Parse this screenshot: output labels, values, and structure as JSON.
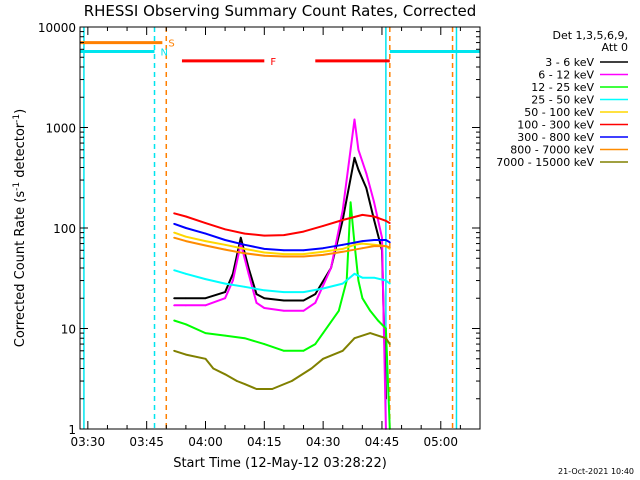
{
  "chart_data": {
    "type": "line",
    "title": "RHESSI Observing Summary Count Rates, Corrected",
    "xlabel": "Start Time (12-May-12 03:28:22)",
    "ylabel_main": "Corrected Count Rate (s",
    "ylabel_sup1": "-1",
    "ylabel_mid": " detector",
    "ylabel_sup2": "-1",
    "ylabel_end": ")",
    "yscale": "log",
    "xlim": [
      "03:28",
      "05:10"
    ],
    "ylim": [
      1,
      10000
    ],
    "x_ticks": [
      "03:30",
      "03:45",
      "04:00",
      "04:15",
      "04:30",
      "04:45",
      "05:00"
    ],
    "y_ticks": [
      "1",
      "10",
      "100",
      "1000",
      "10000"
    ],
    "legend_title_1": "Det 1,3,5,6,9,",
    "legend_title_2": "Att 0",
    "legend_position": "top-right",
    "timestamp": "21-Oct-2021 10:40",
    "flags": [
      {
        "label": "S",
        "color": "#ff8000",
        "level": 7000,
        "segments": [
          [
            "03:28",
            "03:49"
          ]
        ]
      },
      {
        "label": "N",
        "color": "#00e5ee",
        "level": 5700,
        "segments": [
          [
            "03:28",
            "03:47"
          ],
          [
            "04:47",
            "05:10"
          ]
        ]
      },
      {
        "label": "F",
        "color": "#ff0000",
        "level": 4600,
        "segments": [
          [
            "03:54",
            "04:15"
          ],
          [
            "04:28",
            "04:47"
          ]
        ]
      }
    ],
    "vlines": [
      {
        "time": "03:29",
        "color": "#00e5ee",
        "style": "solid"
      },
      {
        "time": "03:47",
        "color": "#00e5ee",
        "style": "dashed"
      },
      {
        "time": "03:50",
        "color": "#ff8000",
        "style": "dashed"
      },
      {
        "time": "04:46",
        "color": "#00e5ee",
        "style": "solid"
      },
      {
        "time": "04:47",
        "color": "#ff8000",
        "style": "dashed"
      },
      {
        "time": "05:03",
        "color": "#ff8000",
        "style": "dashed"
      },
      {
        "time": "05:04",
        "color": "#00e5ee",
        "style": "solid"
      }
    ],
    "series": [
      {
        "name": "3 - 6 keV",
        "color": "#000000",
        "x": [
          "03:52",
          "03:55",
          "04:00",
          "04:05",
          "04:07",
          "04:09",
          "04:11",
          "04:13",
          "04:15",
          "04:20",
          "04:25",
          "04:28",
          "04:32",
          "04:35",
          "04:38",
          "04:39",
          "04:41",
          "04:43",
          "04:45",
          "04:46"
        ],
        "y": [
          20,
          20,
          20,
          23,
          35,
          80,
          40,
          22,
          20,
          19,
          19,
          22,
          40,
          120,
          500,
          380,
          250,
          120,
          60,
          2
        ]
      },
      {
        "name": "6 - 12 keV",
        "color": "#ff00ff",
        "x": [
          "03:52",
          "03:55",
          "04:00",
          "04:05",
          "04:07",
          "04:09",
          "04:11",
          "04:13",
          "04:15",
          "04:20",
          "04:25",
          "04:28",
          "04:32",
          "04:35",
          "04:38",
          "04:39",
          "04:41",
          "04:43",
          "04:45",
          "04:46"
        ],
        "y": [
          17,
          17,
          17,
          20,
          30,
          70,
          35,
          18,
          16,
          15,
          15,
          18,
          40,
          150,
          1200,
          600,
          350,
          180,
          80,
          1
        ]
      },
      {
        "name": "12 - 25 keV",
        "color": "#00ff00",
        "x": [
          "03:52",
          "03:55",
          "04:00",
          "04:05",
          "04:10",
          "04:15",
          "04:20",
          "04:25",
          "04:28",
          "04:30",
          "04:34",
          "04:36",
          "04:37",
          "04:38",
          "04:39",
          "04:40",
          "04:42",
          "04:44",
          "04:46",
          "04:47"
        ],
        "y": [
          12,
          11,
          9,
          8.5,
          8,
          7,
          6,
          6,
          7,
          9,
          15,
          30,
          180,
          70,
          30,
          20,
          15,
          12,
          10,
          1
        ]
      },
      {
        "name": "25 - 50 keV",
        "color": "#00ffff",
        "x": [
          "03:52",
          "03:55",
          "04:00",
          "04:05",
          "04:10",
          "04:15",
          "04:20",
          "04:25",
          "04:30",
          "04:35",
          "04:38",
          "04:40",
          "04:43",
          "04:46",
          "04:47"
        ],
        "y": [
          38,
          35,
          31,
          28,
          26,
          24,
          23,
          23,
          25,
          28,
          35,
          32,
          32,
          30,
          28
        ]
      },
      {
        "name": "50 - 100 keV",
        "color": "#ffd700",
        "x": [
          "03:52",
          "03:55",
          "04:00",
          "04:05",
          "04:10",
          "04:15",
          "04:20",
          "04:25",
          "04:30",
          "04:35",
          "04:38",
          "04:40",
          "04:43",
          "04:46",
          "04:47"
        ],
        "y": [
          90,
          82,
          74,
          68,
          62,
          57,
          55,
          55,
          58,
          62,
          68,
          70,
          68,
          66,
          62
        ]
      },
      {
        "name": "100 - 300 keV",
        "color": "#ff0000",
        "x": [
          "03:52",
          "03:55",
          "04:00",
          "04:05",
          "04:10",
          "04:15",
          "04:20",
          "04:25",
          "04:30",
          "04:35",
          "04:40",
          "04:43",
          "04:46",
          "04:47"
        ],
        "y": [
          140,
          130,
          112,
          97,
          88,
          84,
          85,
          92,
          105,
          120,
          135,
          130,
          118,
          112
        ]
      },
      {
        "name": "300 - 800 keV",
        "color": "#0000ff",
        "x": [
          "03:52",
          "03:55",
          "04:00",
          "04:05",
          "04:10",
          "04:15",
          "04:20",
          "04:25",
          "04:30",
          "04:35",
          "04:40",
          "04:43",
          "04:46",
          "04:47"
        ],
        "y": [
          110,
          100,
          88,
          76,
          68,
          62,
          60,
          60,
          63,
          68,
          74,
          76,
          76,
          72
        ]
      },
      {
        "name": "800 - 7000 keV",
        "color": "#ff8c00",
        "x": [
          "03:52",
          "03:55",
          "04:00",
          "04:05",
          "04:10",
          "04:15",
          "04:20",
          "04:25",
          "04:30",
          "04:35",
          "04:40",
          "04:43",
          "04:46",
          "04:47"
        ],
        "y": [
          80,
          74,
          67,
          61,
          56,
          53,
          52,
          52,
          54,
          58,
          63,
          66,
          66,
          64
        ]
      },
      {
        "name": "7000 - 15000 keV",
        "color": "#808000",
        "x": [
          "03:52",
          "03:55",
          "04:00",
          "04:02",
          "04:05",
          "04:08",
          "04:10",
          "04:13",
          "04:17",
          "04:22",
          "04:27",
          "04:30",
          "04:35",
          "04:38",
          "04:42",
          "04:46",
          "04:47"
        ],
        "y": [
          6,
          5.5,
          5,
          4,
          3.5,
          3,
          2.8,
          2.5,
          2.5,
          3,
          4,
          5,
          6,
          8,
          9,
          8,
          7
        ]
      }
    ]
  }
}
